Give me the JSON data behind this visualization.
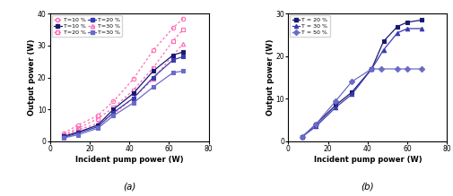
{
  "left": {
    "xlabel": "Incident pump power (W)",
    "ylabel": "Output power (W)",
    "xlim": [
      0,
      80
    ],
    "ylim": [
      0,
      40
    ],
    "xticks": [
      0,
      20,
      40,
      60,
      80
    ],
    "yticks": [
      0,
      10,
      20,
      30,
      40
    ],
    "label": "(a)",
    "series_pink": [
      {
        "label": "T=10 %",
        "x": [
          7,
          14,
          24,
          32,
          42,
          52,
          62,
          67
        ],
        "y": [
          2.5,
          5.0,
          8.0,
          12.5,
          19.5,
          28.5,
          35.5,
          38.5
        ],
        "marker": "o"
      },
      {
        "label": "T=20 %",
        "x": [
          7,
          14,
          24,
          32,
          42,
          52,
          62,
          67
        ],
        "y": [
          2.0,
          4.0,
          7.0,
          10.5,
          16.0,
          23.0,
          31.5,
          35.0
        ],
        "marker": "s"
      },
      {
        "label": "T=30 %",
        "x": [
          7,
          14,
          24,
          32,
          42,
          52,
          62,
          67
        ],
        "y": [
          1.5,
          3.5,
          5.5,
          8.5,
          13.5,
          19.5,
          27.0,
          30.5
        ],
        "marker": "^"
      }
    ],
    "series_blue": [
      {
        "label": "T=10 %",
        "x": [
          7,
          14,
          24,
          32,
          42,
          52,
          62,
          67
        ],
        "y": [
          1.5,
          2.8,
          5.0,
          10.0,
          15.0,
          22.0,
          27.0,
          28.0
        ],
        "color": "#191970"
      },
      {
        "label": "T=20 %",
        "x": [
          7,
          14,
          24,
          32,
          42,
          52,
          62,
          67
        ],
        "y": [
          1.2,
          2.5,
          4.5,
          9.0,
          13.5,
          20.0,
          25.5,
          26.5
        ],
        "color": "#3A3AB0"
      },
      {
        "label": "T=30 %",
        "x": [
          7,
          14,
          24,
          32,
          42,
          52,
          62,
          67
        ],
        "y": [
          1.0,
          2.0,
          4.0,
          8.0,
          12.0,
          17.0,
          21.5,
          22.0
        ],
        "color": "#6B6BC8"
      }
    ]
  },
  "right": {
    "xlabel": "Incident pump power (W)",
    "ylabel": "Output power (W)",
    "xlim": [
      0,
      80
    ],
    "ylim": [
      0,
      30
    ],
    "xticks": [
      0,
      20,
      40,
      60,
      80
    ],
    "yticks": [
      0,
      10,
      20,
      30
    ],
    "label": "(b)",
    "series": [
      {
        "label": "T = 20 %",
        "x": [
          7,
          14,
          24,
          32,
          42,
          48,
          55,
          60,
          67
        ],
        "y": [
          1.0,
          4.0,
          8.5,
          11.5,
          17.0,
          23.5,
          27.0,
          28.0,
          28.5
        ],
        "marker": "s",
        "color": "#191970"
      },
      {
        "label": "T = 30 %",
        "x": [
          7,
          14,
          24,
          32,
          42,
          48,
          55,
          60,
          67
        ],
        "y": [
          1.0,
          3.5,
          8.0,
          11.0,
          17.0,
          21.5,
          25.5,
          26.5,
          26.5
        ],
        "marker": "^",
        "color": "#3A3AB0"
      },
      {
        "label": "T = 50 %",
        "x": [
          7,
          14,
          24,
          32,
          42,
          47,
          55,
          60,
          67
        ],
        "y": [
          1.0,
          4.0,
          9.5,
          14.0,
          17.0,
          17.0,
          17.0,
          17.0,
          17.0
        ],
        "marker": "D",
        "color": "#6B6BC8"
      }
    ]
  }
}
